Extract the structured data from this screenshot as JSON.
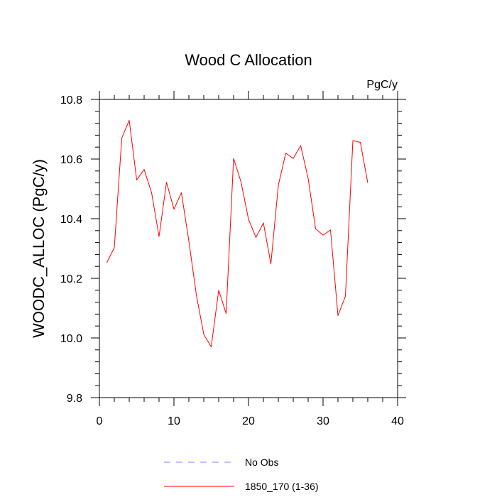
{
  "chart_data": {
    "type": "line",
    "title": "Wood C Allocation",
    "units_label": "PgC/y",
    "xlabel": "",
    "ylabel": "WOODC_ALLOC  (PgC/y)",
    "xlim": [
      0,
      40
    ],
    "ylim": [
      9.8,
      10.8
    ],
    "x_major_ticks": [
      0,
      10,
      20,
      30,
      40
    ],
    "x_tick_labels": [
      "0",
      "10",
      "20",
      "30",
      "40"
    ],
    "y_major_ticks": [
      9.8,
      10.0,
      10.2,
      10.4,
      10.6,
      10.8
    ],
    "y_tick_labels": [
      "9.8",
      "10.0",
      "10.2",
      "10.4",
      "10.6",
      "10.8"
    ],
    "series": [
      {
        "name": "1850_170 (1-36)",
        "color": "#ff0000",
        "style": "solid",
        "x": [
          1,
          2,
          3,
          4,
          5,
          6,
          7,
          8,
          9,
          10,
          11,
          12,
          13,
          14,
          15,
          16,
          17,
          18,
          19,
          20,
          21,
          22,
          23,
          24,
          25,
          26,
          27,
          28,
          29,
          30,
          31,
          32,
          33,
          34,
          35,
          36
        ],
        "values": [
          10.253,
          10.303,
          10.67,
          10.73,
          10.53,
          10.565,
          10.487,
          10.34,
          10.522,
          10.432,
          10.487,
          10.325,
          10.145,
          10.012,
          9.97,
          10.16,
          10.082,
          10.602,
          10.523,
          10.398,
          10.337,
          10.386,
          10.248,
          10.512,
          10.62,
          10.602,
          10.645,
          10.535,
          10.366,
          10.345,
          10.362,
          10.075,
          10.14,
          10.662,
          10.656,
          10.52
        ]
      }
    ],
    "legend": [
      {
        "label": "No Obs",
        "color": "#8080ff",
        "style": "dashed"
      },
      {
        "label": "1850_170 (1-36)",
        "color": "#ff0000",
        "style": "solid"
      }
    ],
    "legend_position": "bottom-center"
  }
}
